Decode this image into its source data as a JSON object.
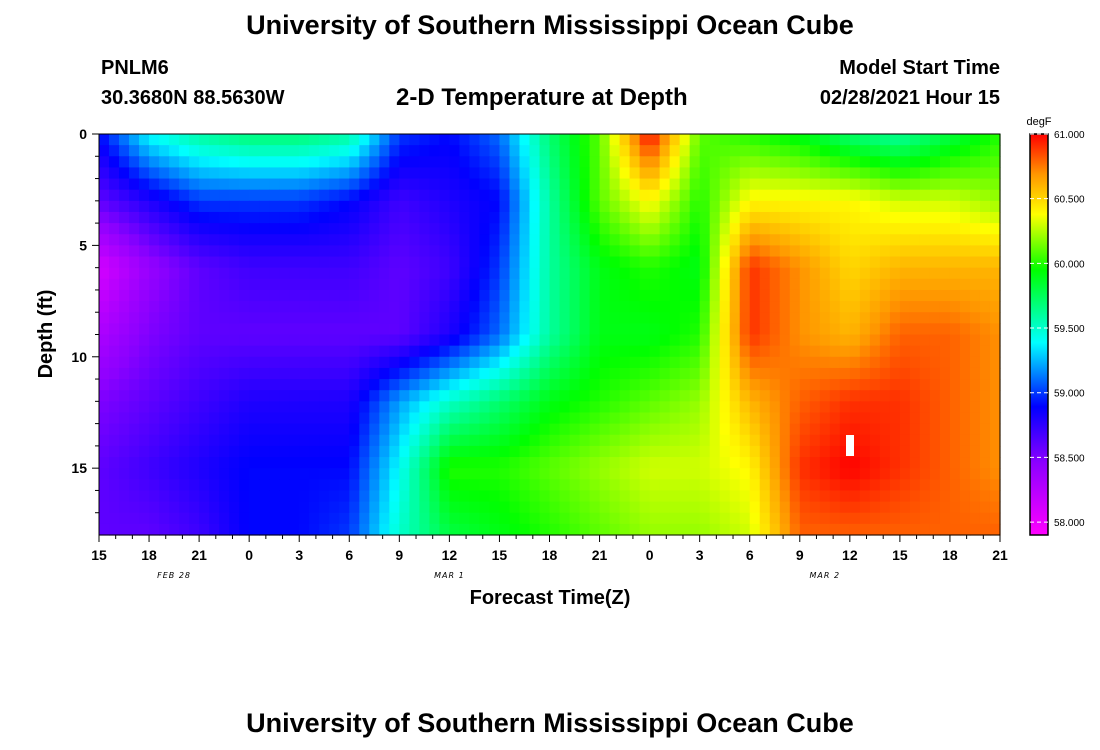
{
  "header": {
    "title": "University of Southern Mississippi Ocean Cube",
    "station_id": "PNLM6",
    "coordinates": "30.3680N 88.5630W",
    "chart_title": "2-D Temperature at Depth",
    "model_start_label": "Model Start Time",
    "model_start_value": "02/28/2021 Hour 15"
  },
  "footer": {
    "title": "University of Southern Mississippi Ocean Cube"
  },
  "chart_data": {
    "type": "heatmap",
    "title": "2-D Temperature at Depth",
    "xlabel": "Forecast Time(Z)",
    "ylabel": "Depth (ft)",
    "x_tick_labels": [
      "15",
      "18",
      "21",
      "0",
      "3",
      "6",
      "9",
      "12",
      "15",
      "18",
      "21",
      "0",
      "3",
      "6",
      "9",
      "12",
      "15",
      "18",
      "21"
    ],
    "x_hours_from_start": [
      0,
      3,
      6,
      9,
      12,
      15,
      18,
      21,
      24,
      27,
      30,
      33,
      36,
      39,
      42,
      45,
      48,
      51,
      54
    ],
    "date_labels": [
      {
        "label": "FEB 28",
        "hour": 4.5
      },
      {
        "label": "MAR 1",
        "hour": 21
      },
      {
        "label": "MAR 2",
        "hour": 43.5
      }
    ],
    "y_ticks": [
      0,
      5,
      10,
      15
    ],
    "ylim": [
      0,
      18
    ],
    "y_inverted": true,
    "colorbar": {
      "unit": "degF",
      "min": 57.9,
      "max": 61.0,
      "ticks": [
        "61.000",
        "60.500",
        "60.000",
        "59.500",
        "59.000",
        "58.500",
        "58.000"
      ]
    },
    "depths_ft": [
      0,
      3,
      6,
      9,
      12,
      15,
      18
    ],
    "hours": [
      0,
      3,
      6,
      9,
      12,
      15,
      18,
      21,
      24,
      27,
      30,
      33,
      36,
      39,
      42,
      45,
      48,
      51,
      54
    ],
    "values_degF": [
      [
        58.9,
        59.4,
        59.6,
        59.7,
        59.7,
        59.6,
        59.0,
        58.9,
        59.1,
        59.7,
        60.1,
        61.0,
        60.1,
        60.0,
        59.9,
        59.7,
        59.6,
        59.8,
        60.0
      ],
      [
        58.6,
        58.8,
        59.0,
        59.0,
        59.0,
        58.9,
        58.7,
        58.8,
        58.9,
        59.6,
        60.1,
        60.4,
        60.0,
        60.4,
        60.4,
        60.4,
        60.3,
        60.3,
        60.2
      ],
      [
        58.1,
        58.4,
        58.6,
        58.7,
        58.7,
        58.7,
        58.6,
        58.7,
        59.0,
        59.6,
        59.9,
        60.0,
        59.9,
        60.9,
        60.7,
        60.5,
        60.6,
        60.6,
        60.6
      ],
      [
        58.3,
        58.5,
        58.6,
        58.6,
        58.6,
        58.6,
        58.6,
        58.8,
        59.1,
        59.6,
        59.9,
        59.9,
        60.0,
        60.9,
        60.7,
        60.6,
        60.8,
        60.8,
        60.7
      ],
      [
        58.5,
        58.6,
        58.7,
        58.8,
        58.8,
        58.8,
        59.2,
        59.5,
        59.7,
        59.9,
        60.0,
        60.1,
        60.2,
        60.6,
        60.8,
        60.9,
        60.9,
        60.8,
        60.7
      ],
      [
        58.6,
        58.7,
        58.8,
        58.9,
        58.9,
        58.9,
        59.4,
        60.0,
        60.0,
        60.1,
        60.2,
        60.3,
        60.3,
        60.4,
        60.9,
        61.0,
        60.9,
        60.8,
        60.7
      ],
      [
        58.6,
        58.6,
        58.7,
        58.9,
        58.9,
        59.0,
        59.5,
        59.8,
        59.9,
        60.0,
        60.1,
        60.2,
        60.2,
        60.3,
        60.8,
        60.8,
        60.8,
        60.8,
        60.8
      ]
    ]
  }
}
